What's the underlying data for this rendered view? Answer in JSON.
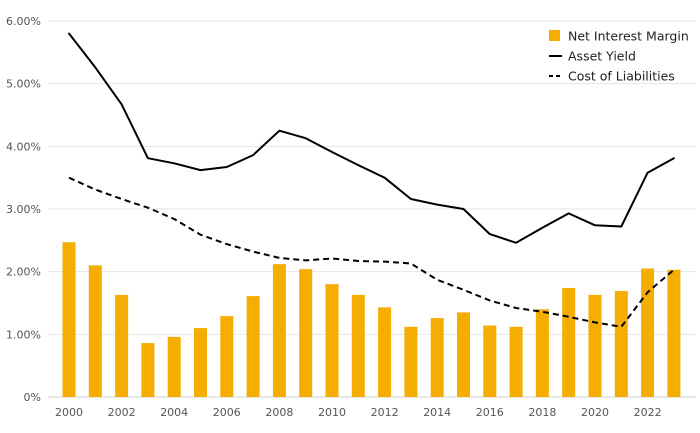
{
  "chart_data": {
    "type": "bar",
    "title": "",
    "xlabel": "",
    "ylabel": "",
    "x": [
      2000,
      2001,
      2002,
      2003,
      2004,
      2005,
      2006,
      2007,
      2008,
      2009,
      2010,
      2011,
      2012,
      2013,
      2014,
      2015,
      2016,
      2017,
      2018,
      2019,
      2020,
      2021,
      2022,
      2023
    ],
    "ylim": [
      0,
      6
    ],
    "yticks": [
      0,
      1,
      2,
      3,
      4,
      5,
      6
    ],
    "ytick_labels": [
      "0%",
      "1.00%",
      "2.00%",
      "3.00%",
      "4.00%",
      "5.00%",
      "6.00%"
    ],
    "xtick_labels": [
      "2000",
      "2002",
      "2004",
      "2006",
      "2008",
      "2010",
      "2012",
      "2014",
      "2016",
      "2018",
      "2020",
      "2022"
    ],
    "grid": "horizontal",
    "legend_position": "top-right",
    "series": [
      {
        "name": "Net Interest Margin",
        "kind": "bar",
        "color": "#f5ad00",
        "values": [
          2.47,
          2.1,
          1.63,
          0.86,
          0.96,
          1.1,
          1.29,
          1.61,
          2.12,
          2.04,
          1.8,
          1.63,
          1.43,
          1.12,
          1.26,
          1.35,
          1.14,
          1.12,
          1.4,
          1.74,
          1.63,
          1.69,
          2.05,
          2.03
        ]
      },
      {
        "name": "Asset Yield",
        "kind": "line",
        "color": "#000000",
        "dash": "solid",
        "values": [
          5.8,
          5.26,
          4.67,
          3.81,
          3.73,
          3.62,
          3.67,
          3.86,
          4.25,
          4.13,
          3.91,
          3.7,
          3.5,
          3.16,
          3.07,
          3.0,
          2.6,
          2.46,
          2.7,
          2.93,
          2.74,
          2.72,
          3.58,
          3.81
        ]
      },
      {
        "name": "Cost of Liabilities",
        "kind": "line",
        "color": "#000000",
        "dash": "dashed",
        "values": [
          3.5,
          3.31,
          3.16,
          3.02,
          2.84,
          2.59,
          2.44,
          2.32,
          2.22,
          2.18,
          2.21,
          2.17,
          2.16,
          2.13,
          1.87,
          1.71,
          1.54,
          1.42,
          1.36,
          1.28,
          1.19,
          1.12,
          1.67,
          2.03
        ]
      }
    ]
  }
}
